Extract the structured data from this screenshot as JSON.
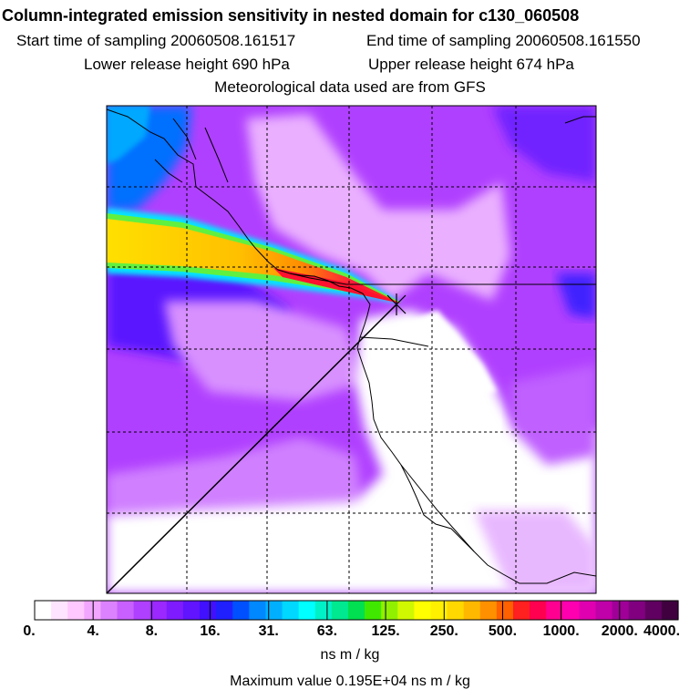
{
  "header": {
    "title": "Column-integrated emission sensitivity in nested domain for c130_060508",
    "start_sampling": "Start time of sampling 20060508.161517",
    "end_sampling": "End time of sampling 20060508.161550",
    "lower_release": "Lower release height  690 hPa",
    "upper_release": "Upper release height  674 hPa",
    "met_data": "Meteorological data used are from GFS"
  },
  "colorbar": {
    "tick_labels": [
      "0.",
      "4.",
      "8.",
      "16.",
      "31.",
      "63.",
      "125.",
      "250.",
      "500.",
      "1000.",
      "2000.",
      "4000."
    ],
    "units": "ns m / kg",
    "colors": [
      "#ffffff",
      "#ffe4ff",
      "#ffc8ff",
      "#f3a6ff",
      "#dd82ff",
      "#c860ff",
      "#b040ff",
      "#9a28ff",
      "#7e1cff",
      "#6014ff",
      "#4010ff",
      "#2020ff",
      "#0050ff",
      "#0088ff",
      "#00b0ff",
      "#00d8ff",
      "#00ffff",
      "#00f0c8",
      "#00e890",
      "#00e050",
      "#40e800",
      "#90f000",
      "#d0f800",
      "#ffff00",
      "#fff000",
      "#ffd800",
      "#ffb800",
      "#ff9000",
      "#ff6000",
      "#ff2020",
      "#ff0050",
      "#ff0090",
      "#ff00b0",
      "#e000b0",
      "#c000a8",
      "#a00098",
      "#800080",
      "#600060",
      "#400040"
    ]
  },
  "footer": {
    "max_value": "Maximum value  0.195E+04 ns m / kg"
  },
  "map": {
    "background_color": "#b040ff",
    "low_sensitivity_color": "#ffffff",
    "plume_colors": [
      "#ffe800",
      "#ffb000",
      "#ff2020",
      "#00ff80",
      "#00e0ff"
    ],
    "grid_lines": "dashed"
  }
}
